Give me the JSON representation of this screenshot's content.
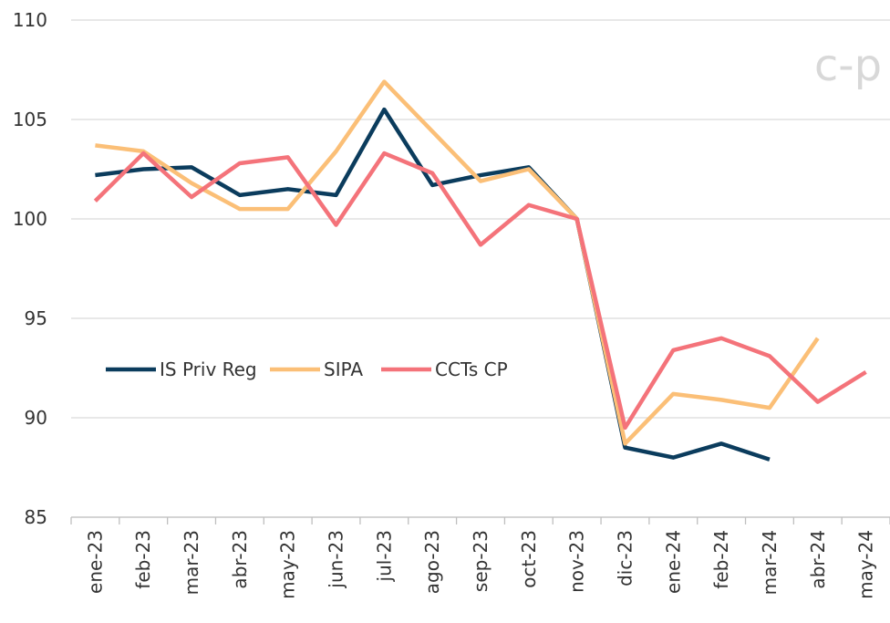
{
  "chart_data": {
    "type": "line",
    "watermark": "c-p",
    "categories": [
      "ene-23",
      "feb-23",
      "mar-23",
      "abr-23",
      "may-23",
      "jun-23",
      "jul-23",
      "ago-23",
      "sep-23",
      "oct-23",
      "nov-23",
      "dic-23",
      "ene-24",
      "feb-24",
      "mar-24",
      "abr-24",
      "may-24"
    ],
    "series": [
      {
        "name": "IS Priv Reg",
        "color": "#0b3c5d",
        "values": [
          102.2,
          102.5,
          102.6,
          101.2,
          101.5,
          101.2,
          105.5,
          101.7,
          102.2,
          102.6,
          100,
          88.5,
          88.0,
          88.7,
          87.9,
          null,
          null
        ]
      },
      {
        "name": "SIPA",
        "color": "#fbbf77",
        "values": [
          103.7,
          103.4,
          101.8,
          100.5,
          100.5,
          103.4,
          106.9,
          104.4,
          101.9,
          102.5,
          100,
          88.7,
          91.2,
          90.9,
          90.5,
          94.0,
          null
        ]
      },
      {
        "name": "CCTs CP",
        "color": "#f4737a",
        "values": [
          100.9,
          103.3,
          101.1,
          102.8,
          103.1,
          99.7,
          103.3,
          102.3,
          98.7,
          100.7,
          100,
          89.5,
          93.4,
          94.0,
          93.1,
          90.8,
          92.3
        ]
      }
    ],
    "ylim": [
      85,
      110
    ],
    "yticks": [
      85,
      90,
      95,
      100,
      105,
      110
    ],
    "grid": true,
    "legend": "left"
  }
}
